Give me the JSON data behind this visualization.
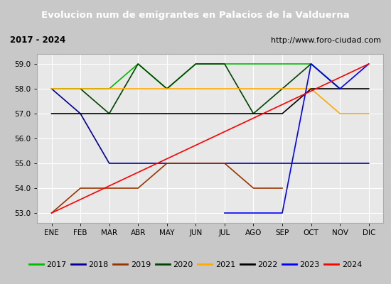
{
  "title": "Evolucion num de emigrantes en Palacios de la Valduerna",
  "subtitle_left": "2017 - 2024",
  "subtitle_right": "http://www.foro-ciudad.com",
  "month_labels": [
    "ENE",
    "FEB",
    "MAR",
    "ABR",
    "MAY",
    "JUN",
    "JUL",
    "AGO",
    "SEP",
    "OCT",
    "NOV",
    "DIC"
  ],
  "ylim": [
    52.6,
    59.4
  ],
  "yticks": [
    53.0,
    54.0,
    55.0,
    56.0,
    57.0,
    58.0,
    59.0
  ],
  "title_bg": "#4477cc",
  "title_color": "#ffffff",
  "plot_bg": "#e8e8e8",
  "outer_bg": "#c8c8c8",
  "subtitle_bg": "#ffffff",
  "grid_color": "#ffffff",
  "series": [
    {
      "year": "2017",
      "color": "#00bb00",
      "x": [
        0,
        1,
        2,
        3,
        4,
        5,
        6,
        7,
        8,
        9,
        10
      ],
      "y": [
        58,
        58,
        58,
        59,
        58,
        59,
        59,
        59,
        59,
        59,
        58
      ]
    },
    {
      "year": "2018",
      "color": "#000099",
      "x": [
        0,
        1,
        2,
        3,
        4,
        5,
        6,
        7,
        8,
        9,
        10,
        11
      ],
      "y": [
        58,
        57,
        55,
        55,
        55,
        55,
        55,
        55,
        55,
        55,
        55,
        55
      ]
    },
    {
      "year": "2019",
      "color": "#993300",
      "x": [
        0,
        1,
        2,
        3,
        4,
        5,
        6,
        7,
        8
      ],
      "y": [
        53,
        54,
        54,
        54,
        55,
        55,
        55,
        54,
        54
      ]
    },
    {
      "year": "2020",
      "color": "#004400",
      "x": [
        1,
        2,
        3,
        4,
        5,
        6,
        7,
        8,
        9,
        10
      ],
      "y": [
        58,
        57,
        59,
        58,
        59,
        59,
        57,
        58,
        59,
        58
      ]
    },
    {
      "year": "2021",
      "color": "#ffaa00",
      "x": [
        0,
        1,
        2,
        3,
        4,
        5,
        6,
        7,
        8,
        9,
        10,
        11
      ],
      "y": [
        58,
        58,
        58,
        58,
        58,
        58,
        58,
        58,
        58,
        58,
        57,
        57
      ]
    },
    {
      "year": "2022",
      "color": "#000000",
      "x": [
        0,
        1,
        2,
        3,
        4,
        5,
        6,
        7,
        8,
        9,
        10,
        11
      ],
      "y": [
        57,
        57,
        57,
        57,
        57,
        57,
        57,
        57,
        57,
        58,
        58,
        58
      ]
    },
    {
      "year": "2023",
      "color": "#0000ff",
      "x": [
        6,
        7,
        8,
        9,
        10,
        11
      ],
      "y": [
        53,
        53,
        53,
        59,
        58,
        59
      ]
    },
    {
      "year": "2024",
      "color": "#ff0000",
      "x": [
        0,
        11
      ],
      "y": [
        53,
        59
      ]
    }
  ]
}
